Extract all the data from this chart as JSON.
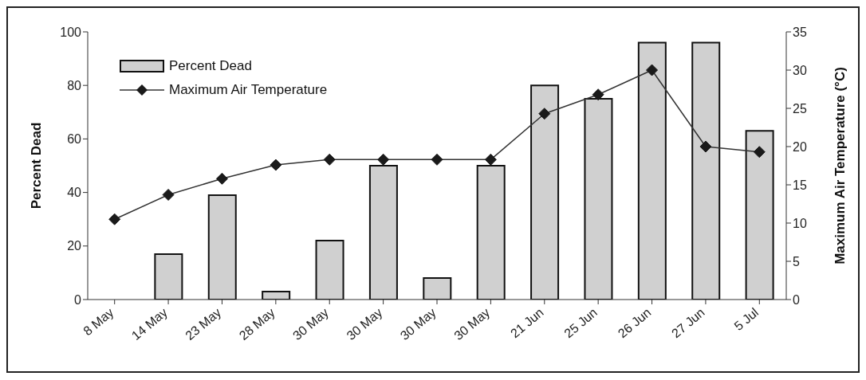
{
  "chart_data": {
    "type": "bar",
    "ylabel": "Percent Dead",
    "y2label": "Maximum  Air Temperature (°C)",
    "categories": [
      "8 May",
      "14 May",
      "23 May",
      "28 May",
      "30 May",
      "30 May",
      "30 May",
      "30 May",
      "21 Jun",
      "25 Jun",
      "26 Jun",
      "27 Jun",
      "5 Jul"
    ],
    "series": [
      {
        "name": "Percent Dead",
        "color": "#d0d0d0",
        "values": [
          0,
          17,
          39,
          3,
          22,
          50,
          8,
          50,
          80,
          75,
          96,
          96,
          63
        ]
      },
      {
        "name": "Maximum Air Temperature",
        "type": "line",
        "axis": "y2",
        "color": "#333333",
        "values": [
          10.5,
          13.7,
          15.8,
          17.6,
          18.3,
          18.3,
          18.3,
          18.3,
          24.3,
          26.8,
          30,
          20,
          19.3
        ]
      }
    ],
    "ylim": [
      0,
      100
    ],
    "yticks": [
      0,
      20,
      40,
      60,
      80,
      100
    ],
    "y2lim": [
      0,
      35
    ],
    "y2ticks": [
      0,
      5,
      10,
      15,
      20,
      25,
      30,
      35
    ],
    "marker": "diamond",
    "legend": "top left",
    "grid": false
  }
}
